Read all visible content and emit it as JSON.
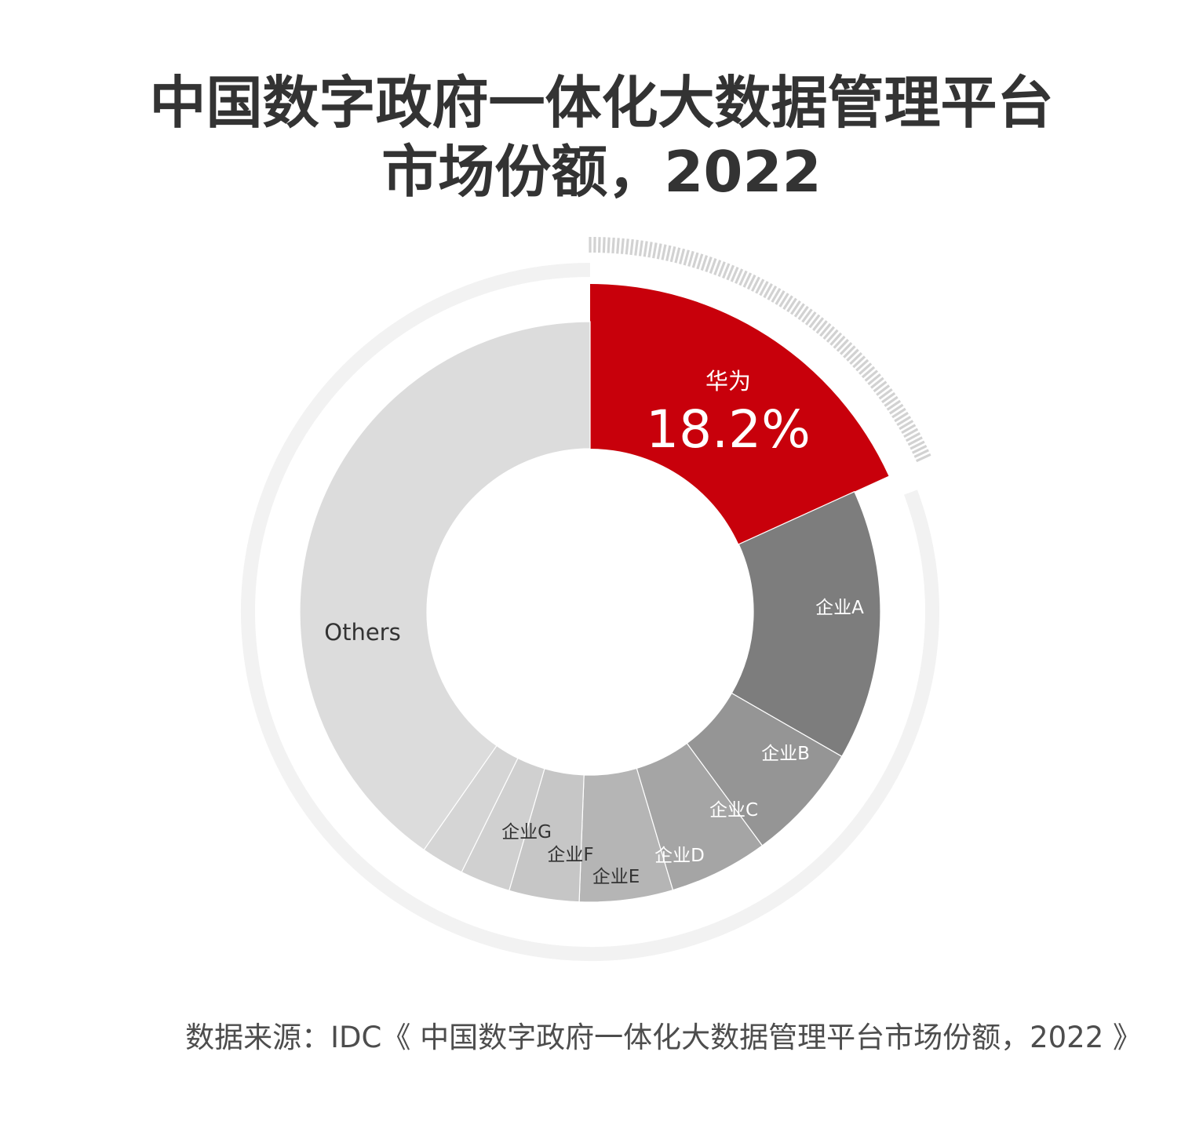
{
  "title_lines": [
    "中国数字政府一体化大数据管理平台",
    "市场份额，2022"
  ],
  "source": "数据来源：IDC《 中国数字政府一体化大数据管理平台市场份额，2022 》",
  "colors": {
    "huawei": "#c8000b",
    "vendor_a": "#7d7d7d",
    "vendor_b": "#959595",
    "vendor_c": "#a5a5a5",
    "vendor_d": "#b5b5b5",
    "vendor_e": "#c6c6c6",
    "vendor_f": "#d0d0d0",
    "vendor_g": "#d5d5d5",
    "others": "#dcdcdc",
    "outer_ring": "#f2f2f2",
    "hatch": "#d2d2d2"
  },
  "chart_data": {
    "type": "pie",
    "donut": true,
    "title": "中国数字政府一体化大数据管理平台市场份额，2022",
    "slices": [
      {
        "label": "华为",
        "value": 18.2,
        "value_label": "18.2%",
        "highlight": true
      },
      {
        "label": "企业A",
        "value": 15.1
      },
      {
        "label": "企业B",
        "value": 6.6
      },
      {
        "label": "企业C",
        "value": 5.5
      },
      {
        "label": "企业D",
        "value": 5.2
      },
      {
        "label": "企业E",
        "value": 3.9
      },
      {
        "label": "企业F",
        "value": 2.8
      },
      {
        "label": "企业G",
        "value": 2.4
      },
      {
        "label": "Others",
        "value": 40.3
      }
    ]
  }
}
